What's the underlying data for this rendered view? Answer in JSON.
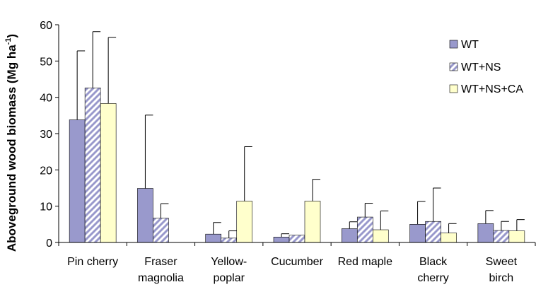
{
  "chart_data": {
    "type": "bar",
    "title": "",
    "xlabel": "",
    "ylabel": "Aboveground wood biomass (Mg ha",
    "ylabel_sup": "-1",
    "ylabel_close": ")",
    "ylim": [
      0,
      60
    ],
    "yticks": [
      0,
      10,
      20,
      30,
      40,
      50,
      60
    ],
    "grid": false,
    "legend_position": "top-right",
    "categories": [
      [
        "Pin cherry"
      ],
      [
        "Fraser",
        "magnolia"
      ],
      [
        "Yellow-",
        "poplar"
      ],
      [
        "Cucumber"
      ],
      [
        "Red maple"
      ],
      [
        "Black",
        "cherry"
      ],
      [
        "Sweet",
        "birch"
      ]
    ],
    "series": [
      {
        "name": "WT",
        "fill": "#9999cc",
        "pattern": "solid",
        "values": [
          33.8,
          14.9,
          2.3,
          1.5,
          3.8,
          5.0,
          5.2
        ],
        "errors": [
          19.0,
          20.2,
          3.2,
          0.9,
          1.9,
          6.3,
          3.6
        ]
      },
      {
        "name": "WT+NS",
        "fill": "#9999cc",
        "pattern": "hatch",
        "values": [
          42.6,
          6.7,
          1.2,
          2.0,
          7.0,
          5.8,
          3.3
        ],
        "errors": [
          15.5,
          4.0,
          2.0,
          0.0,
          3.8,
          9.2,
          2.5
        ]
      },
      {
        "name": "WT+NS+CA",
        "fill": "#ffffcc",
        "pattern": "solid",
        "values": [
          38.3,
          0,
          11.4,
          11.4,
          3.5,
          2.6,
          3.2
        ],
        "errors": [
          18.2,
          0,
          15.0,
          6.0,
          5.2,
          2.6,
          3.1
        ]
      }
    ]
  }
}
